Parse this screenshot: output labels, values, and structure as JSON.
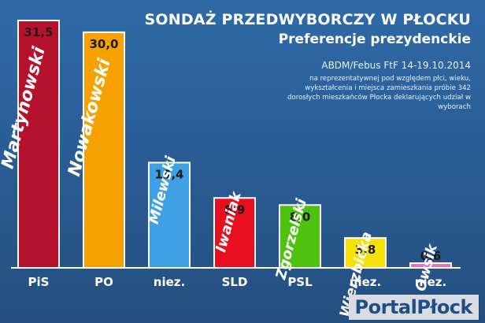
{
  "chart_data": {
    "type": "bar",
    "title": "SONDAŻ PRZEDWYBORCZY W PŁOCKU",
    "subtitle": "Preferencje prezydenckie",
    "source": "ABDM/Febus FtF 14-19.10.2014",
    "note": "na reprezentatywnej pod względem płci, wieku, wykształcenia i miejsca zamieszkania próbie 342 dorosłych mieszkańców Płocka deklarujących udział w wyborach",
    "categories": [
      "PiS",
      "PO",
      "niez.",
      "SLD",
      "PSL",
      "niez.",
      "niez."
    ],
    "candidates": [
      "Martynowski",
      "Nowakowski",
      "Milewski",
      "Iwaniak",
      "Zgorzelski",
      "Wierzbicka",
      "Owsik"
    ],
    "values": [
      31.5,
      30.0,
      13.4,
      8.9,
      8.0,
      3.8,
      0.6
    ],
    "value_labels": [
      "31,5",
      "30,0",
      "13,4",
      "8,9",
      "8,0",
      "3,8",
      "0,6"
    ],
    "colors": [
      "#b5122e",
      "#f5a100",
      "#3fa0e6",
      "#e8101f",
      "#4fc20f",
      "#f7df0a",
      "#e66fc1"
    ],
    "ylim": [
      0,
      31.5
    ]
  },
  "logo_text": "PortalPłock"
}
